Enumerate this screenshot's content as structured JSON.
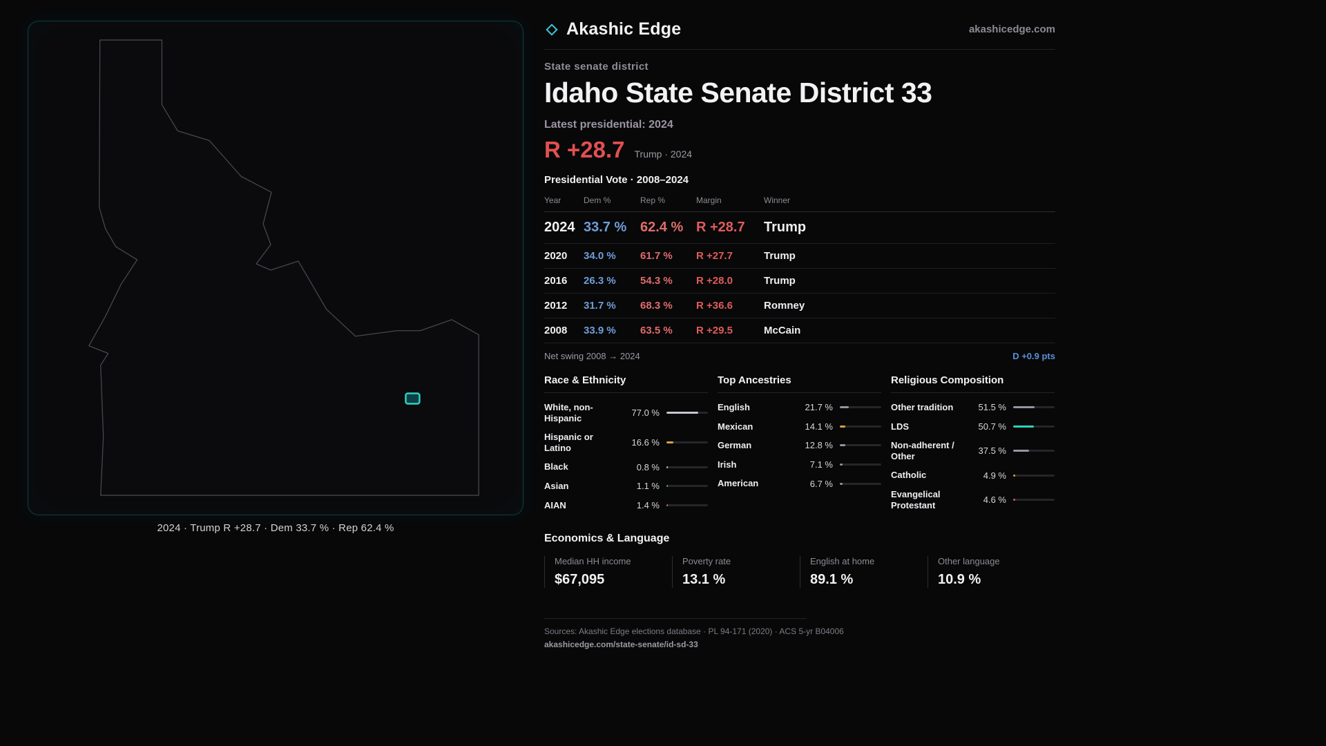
{
  "header": {
    "brand": "Akashic Edge",
    "site": "akashicedge.com"
  },
  "map": {
    "caption": "2024 · Trump R +28.7 · Dem 33.7 % · Rep 62.4 %"
  },
  "page": {
    "kicker": "State senate district",
    "title": "Idaho State Senate District 33",
    "latest_label": "Latest presidential: 2024",
    "headline_margin": "R +28.7",
    "headline_sub": "Trump · 2024"
  },
  "vote_table": {
    "title": "Presidential Vote · 2008–2024",
    "columns": {
      "year": "Year",
      "dem": "Dem %",
      "rep": "Rep %",
      "margin": "Margin",
      "winner": "Winner"
    },
    "rows": [
      {
        "year": "2024",
        "dem": "33.7 %",
        "rep": "62.4 %",
        "margin": "R +28.7",
        "winner": "Trump"
      },
      {
        "year": "2020",
        "dem": "34.0 %",
        "rep": "61.7 %",
        "margin": "R +27.7",
        "winner": "Trump"
      },
      {
        "year": "2016",
        "dem": "26.3 %",
        "rep": "54.3 %",
        "margin": "R +28.0",
        "winner": "Trump"
      },
      {
        "year": "2012",
        "dem": "31.7 %",
        "rep": "68.3 %",
        "margin": "R +36.6",
        "winner": "Romney"
      },
      {
        "year": "2008",
        "dem": "33.9 %",
        "rep": "63.5 %",
        "margin": "R +29.5",
        "winner": "McCain"
      }
    ],
    "net_swing_label": "Net swing 2008 → 2024",
    "net_swing_value": "D +0.9 pts"
  },
  "demographics": {
    "race": {
      "title": "Race & Ethnicity",
      "items": [
        {
          "label": "White, non-Hispanic",
          "value": "77.0 %",
          "pct": 77.0,
          "color": "#c6c7d0"
        },
        {
          "label": "Hispanic or Latino",
          "value": "16.6 %",
          "pct": 16.6,
          "color": "#d9a43e"
        },
        {
          "label": "Black",
          "value": "0.8 %",
          "pct": 0.8,
          "color": "#c6c7d0"
        },
        {
          "label": "Asian",
          "value": "1.1 %",
          "pct": 1.1,
          "color": "#4caf6e"
        },
        {
          "label": "AIAN",
          "value": "1.4 %",
          "pct": 1.4,
          "color": "#d96a4a"
        }
      ]
    },
    "ancestries": {
      "title": "Top Ancestries",
      "items": [
        {
          "label": "English",
          "value": "21.7 %",
          "pct": 21.7,
          "color": "#9496a1"
        },
        {
          "label": "Mexican",
          "value": "14.1 %",
          "pct": 14.1,
          "color": "#d9a43e"
        },
        {
          "label": "German",
          "value": "12.8 %",
          "pct": 12.8,
          "color": "#9496a1"
        },
        {
          "label": "Irish",
          "value": "7.1 %",
          "pct": 7.1,
          "color": "#9496a1"
        },
        {
          "label": "American",
          "value": "6.7 %",
          "pct": 6.7,
          "color": "#9496a1"
        }
      ]
    },
    "religion": {
      "title": "Religious Composition",
      "items": [
        {
          "label": "Other tradition",
          "value": "51.5 %",
          "pct": 51.5,
          "color": "#9496a1"
        },
        {
          "label": "LDS",
          "value": "50.7 %",
          "pct": 50.7,
          "color": "#2dd4be"
        },
        {
          "label": "Non-adherent / Other",
          "value": "37.5 %",
          "pct": 37.5,
          "color": "#9496a1"
        },
        {
          "label": "Catholic",
          "value": "4.9 %",
          "pct": 4.9,
          "color": "#d9a43e"
        },
        {
          "label": "Evangelical Protestant",
          "value": "4.6 %",
          "pct": 4.6,
          "color": "#e0566b"
        }
      ]
    }
  },
  "economics": {
    "title": "Economics & Language",
    "stats": [
      {
        "label": "Median HH income",
        "value": "$67,095"
      },
      {
        "label": "Poverty rate",
        "value": "13.1 %"
      },
      {
        "label": "English at home",
        "value": "89.1 %"
      },
      {
        "label": "Other language",
        "value": "10.9 %"
      }
    ]
  },
  "footer": {
    "sources": "Sources: Akashic Edge elections database · PL 94-171 (2020) · ACS 5-yr B04006",
    "permalink": "akashicedge.com/state-senate/id-sd-33"
  }
}
